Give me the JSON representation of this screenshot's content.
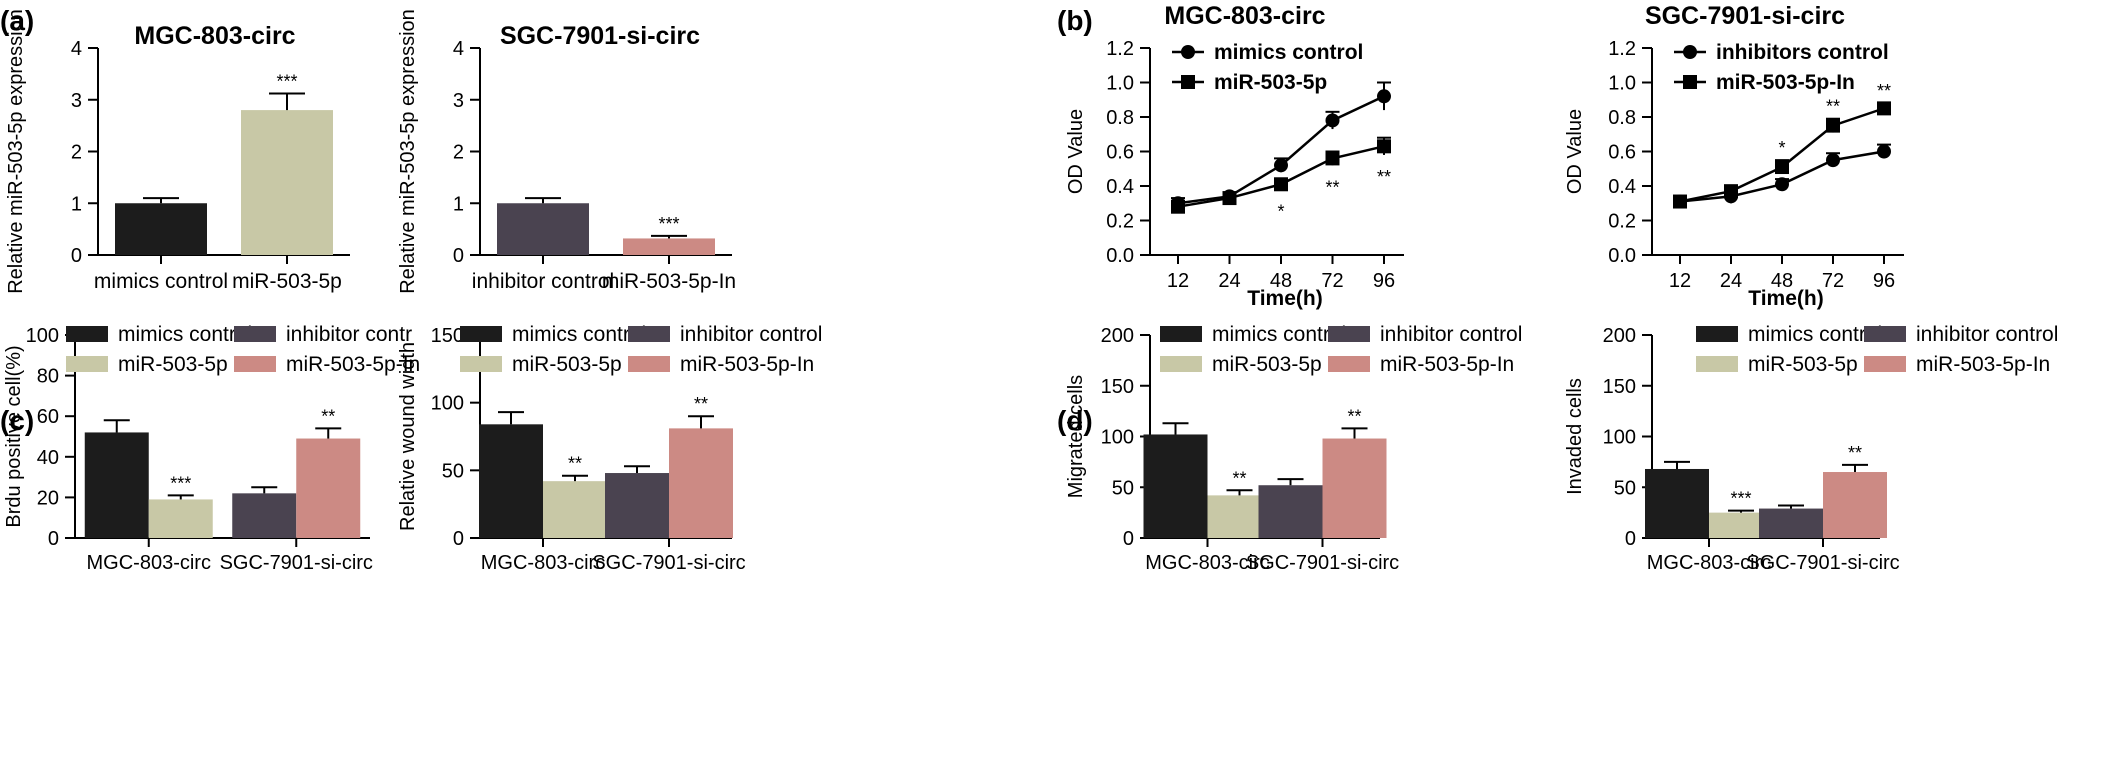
{
  "panel_labels": [
    "(a)",
    "(b)",
    "(c)",
    "(d)"
  ],
  "colors": {
    "black": "#1c1c1c",
    "beige": "#c8c8a6",
    "purple": "#4a4350",
    "rose": "#cc8a84",
    "axis": "#000000"
  },
  "chart_data": [
    {
      "type": "bar",
      "panel": "(a)",
      "title": "MGC-803-circ",
      "ylabel": "Relative miR-503-5p expression",
      "xlabel": "",
      "ylim": [
        0,
        4
      ],
      "yticks": [
        "0",
        "1",
        "2",
        "3",
        "4"
      ],
      "categories": [
        "mimics control",
        "miR-503-5p"
      ],
      "values": [
        1.0,
        2.8
      ],
      "errors": [
        0.1,
        0.32
      ],
      "colors": [
        "#1c1c1c",
        "#c8c8a6"
      ],
      "significance": [
        "",
        "***"
      ]
    },
    {
      "type": "bar",
      "panel": "",
      "title": "SGC-7901-si-circ",
      "ylabel": "Relative miR-503-5p expression",
      "xlabel": "",
      "ylim": [
        0,
        4
      ],
      "yticks": [
        "0",
        "1",
        "2",
        "3",
        "4"
      ],
      "categories": [
        "inhibitor control",
        "miR-503-5p-In"
      ],
      "values": [
        1.0,
        0.32
      ],
      "errors": [
        0.1,
        0.05
      ],
      "colors": [
        "#4a4350",
        "#cc8a84"
      ],
      "significance": [
        "",
        "***"
      ]
    },
    {
      "type": "line",
      "panel": "(b)",
      "title": "MGC-803-circ",
      "ylabel": "OD Value",
      "xlabel": "Time(h)",
      "ylim": [
        0.0,
        1.2
      ],
      "yticks": [
        "0.0",
        "0.2",
        "0.4",
        "0.6",
        "0.8",
        "1.0",
        "1.2"
      ],
      "x": [
        "12",
        "24",
        "48",
        "72",
        "96"
      ],
      "series": [
        {
          "name": "mimics control",
          "marker": "circle",
          "values": [
            0.3,
            0.34,
            0.52,
            0.78,
            0.92
          ],
          "errors": [
            0.03,
            0.02,
            0.04,
            0.05,
            0.08
          ]
        },
        {
          "name": "miR-503-5p",
          "marker": "square",
          "values": [
            0.28,
            0.33,
            0.41,
            0.56,
            0.63
          ],
          "errors": [
            0.03,
            0.02,
            0.03,
            0.04,
            0.05
          ]
        }
      ],
      "significance": [
        "",
        "",
        "*",
        "**",
        "**"
      ]
    },
    {
      "type": "line",
      "panel": "",
      "title": "SGC-7901-si-circ",
      "ylabel": "OD Value",
      "xlabel": "Time(h)",
      "ylim": [
        0.0,
        1.2
      ],
      "yticks": [
        "0.0",
        "0.2",
        "0.4",
        "0.6",
        "0.8",
        "1.0",
        "1.2"
      ],
      "x": [
        "12",
        "24",
        "48",
        "72",
        "96"
      ],
      "series": [
        {
          "name": "inhibitors control",
          "marker": "circle",
          "values": [
            0.31,
            0.34,
            0.41,
            0.55,
            0.6
          ],
          "errors": [
            0.02,
            0.04,
            0.03,
            0.04,
            0.04
          ]
        },
        {
          "name": "miR-503-5p-In",
          "marker": "square",
          "values": [
            0.31,
            0.37,
            0.51,
            0.75,
            0.85
          ],
          "errors": [
            0.02,
            0.03,
            0.04,
            0.04,
            0.03
          ]
        }
      ],
      "significance": [
        "",
        "",
        "*",
        "**",
        "**"
      ]
    },
    {
      "type": "bar",
      "panel": "(c)",
      "title": "",
      "ylabel": "Brdu positive cell(%)",
      "xlabel": "",
      "ylim": [
        0,
        100
      ],
      "yticks": [
        "0",
        "20",
        "40",
        "60",
        "80",
        "100"
      ],
      "categories": [
        "MGC-803-circ",
        "SGC-7901-si-circ"
      ],
      "legend": [
        "mimics control",
        "miR-503-5p",
        "inhibitor contr",
        "miR-503-5p-In"
      ],
      "legend_colors": [
        "#1c1c1c",
        "#c8c8a6",
        "#4a4350",
        "#cc8a84"
      ],
      "series": [
        {
          "name": "mimics control",
          "values": [
            52,
            null
          ],
          "errors": [
            6,
            null
          ],
          "significance": [
            "",
            ""
          ]
        },
        {
          "name": "miR-503-5p",
          "values": [
            19,
            null
          ],
          "errors": [
            2,
            null
          ],
          "significance": [
            "***",
            ""
          ]
        },
        {
          "name": "inhibitor control",
          "values": [
            null,
            22
          ],
          "errors": [
            null,
            3
          ],
          "significance": [
            "",
            ""
          ]
        },
        {
          "name": "miR-503-5p-In",
          "values": [
            null,
            49
          ],
          "errors": [
            null,
            5
          ],
          "significance": [
            "",
            "**"
          ]
        }
      ]
    },
    {
      "type": "bar",
      "panel": "",
      "title": "",
      "ylabel": "Relative wound width",
      "xlabel": "",
      "ylim": [
        0,
        150
      ],
      "yticks": [
        "0",
        "50",
        "100",
        "150"
      ],
      "categories": [
        "MGC-803-circ",
        "SGC-7901-si-circ"
      ],
      "legend": [
        "mimics control",
        "miR-503-5p",
        "inhibitor control",
        "miR-503-5p-In"
      ],
      "legend_colors": [
        "#1c1c1c",
        "#c8c8a6",
        "#4a4350",
        "#cc8a84"
      ],
      "series": [
        {
          "name": "mimics control",
          "values": [
            84,
            null
          ],
          "errors": [
            9,
            null
          ],
          "significance": [
            "",
            ""
          ]
        },
        {
          "name": "miR-503-5p",
          "values": [
            42,
            null
          ],
          "errors": [
            4,
            null
          ],
          "significance": [
            "**",
            ""
          ]
        },
        {
          "name": "inhibitor control",
          "values": [
            null,
            48
          ],
          "errors": [
            null,
            5
          ],
          "significance": [
            "",
            ""
          ]
        },
        {
          "name": "miR-503-5p-In",
          "values": [
            null,
            81
          ],
          "errors": [
            null,
            9
          ],
          "significance": [
            "",
            "**"
          ]
        }
      ]
    },
    {
      "type": "bar",
      "panel": "(d)",
      "title": "",
      "ylabel": "Migrated cells",
      "xlabel": "",
      "ylim": [
        0,
        200
      ],
      "yticks": [
        "0",
        "50",
        "100",
        "150",
        "200"
      ],
      "categories": [
        "MGC-803-circ",
        "SGC-7901-si-circ"
      ],
      "legend": [
        "mimics control",
        "miR-503-5p",
        "inhibitor control",
        "miR-503-5p-In"
      ],
      "legend_colors": [
        "#1c1c1c",
        "#c8c8a6",
        "#4a4350",
        "#cc8a84"
      ],
      "series": [
        {
          "name": "mimics control",
          "values": [
            102,
            null
          ],
          "errors": [
            11,
            null
          ],
          "significance": [
            "",
            ""
          ]
        },
        {
          "name": "miR-503-5p",
          "values": [
            42,
            null
          ],
          "errors": [
            5,
            null
          ],
          "significance": [
            "**",
            ""
          ]
        },
        {
          "name": "inhibitor control",
          "values": [
            null,
            52
          ],
          "errors": [
            null,
            6
          ],
          "significance": [
            "",
            ""
          ]
        },
        {
          "name": "miR-503-5p-In",
          "values": [
            null,
            98
          ],
          "errors": [
            null,
            10
          ],
          "significance": [
            "",
            "**"
          ]
        }
      ]
    },
    {
      "type": "bar",
      "panel": "",
      "title": "",
      "ylabel": "Invaded cells",
      "xlabel": "",
      "ylim": [
        0,
        200
      ],
      "yticks": [
        "0",
        "50",
        "100",
        "150",
        "200"
      ],
      "categories": [
        "MGC-803-circ",
        "SGC-7901-si-circ"
      ],
      "legend": [
        "mimics control",
        "miR-503-5p",
        "inhibitor control",
        "miR-503-5p-In"
      ],
      "legend_colors": [
        "#1c1c1c",
        "#c8c8a6",
        "#4a4350",
        "#cc8a84"
      ],
      "series": [
        {
          "name": "mimics control",
          "values": [
            68,
            null
          ],
          "errors": [
            7,
            null
          ],
          "significance": [
            "",
            ""
          ]
        },
        {
          "name": "miR-503-5p",
          "values": [
            25,
            null
          ],
          "errors": [
            2,
            null
          ],
          "significance": [
            "***",
            ""
          ]
        },
        {
          "name": "inhibitor control",
          "values": [
            null,
            29
          ],
          "errors": [
            null,
            3
          ],
          "significance": [
            "",
            ""
          ]
        },
        {
          "name": "miR-503-5p-In",
          "values": [
            null,
            65
          ],
          "errors": [
            null,
            7
          ],
          "significance": [
            "",
            "**"
          ]
        }
      ]
    }
  ]
}
